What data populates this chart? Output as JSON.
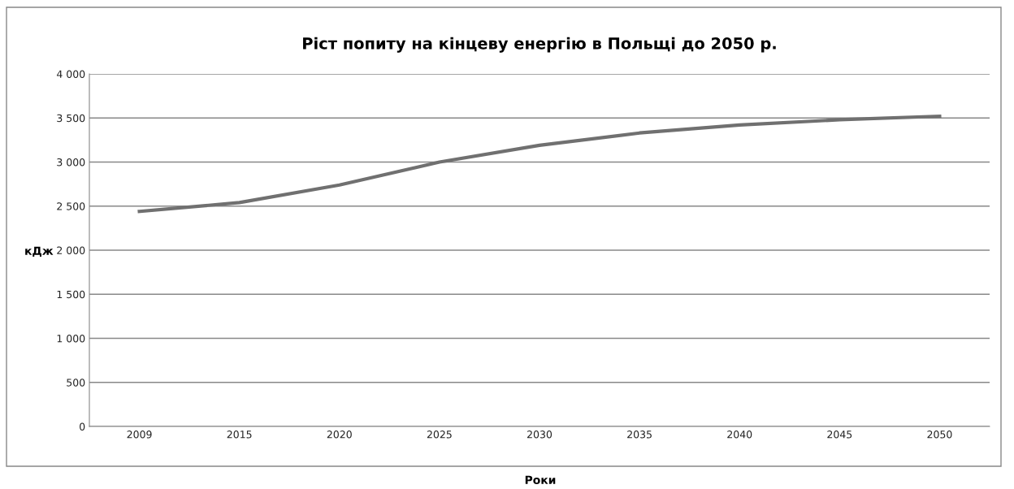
{
  "chart_data": {
    "type": "line",
    "title": "Ріст попиту на кінцеву енергію в Польщі до 2050 р.",
    "xlabel": "Роки",
    "ylabel": "кДж",
    "categories": [
      "2009",
      "2015",
      "2020",
      "2025",
      "2030",
      "2035",
      "2040",
      "2045",
      "2050"
    ],
    "series": [
      {
        "color": "#707070",
        "values": [
          2440,
          2540,
          2740,
          3000,
          3190,
          3330,
          3420,
          3480,
          3520
        ]
      }
    ],
    "ylim": [
      0,
      4000
    ],
    "yticks": [
      0,
      500,
      {
        "value": 1000,
        "label": "1 000"
      },
      {
        "value": 1500,
        "label": "1 500"
      },
      {
        "value": 2000,
        "label": "2 000"
      },
      {
        "value": 2500,
        "label": "2 500"
      },
      {
        "value": 3000,
        "label": "3 000"
      },
      {
        "value": 3500,
        "label": "3 500"
      },
      {
        "value": 4000,
        "label": "4 000"
      }
    ],
    "grid": "y",
    "marker": "none",
    "line_style": "solid"
  }
}
